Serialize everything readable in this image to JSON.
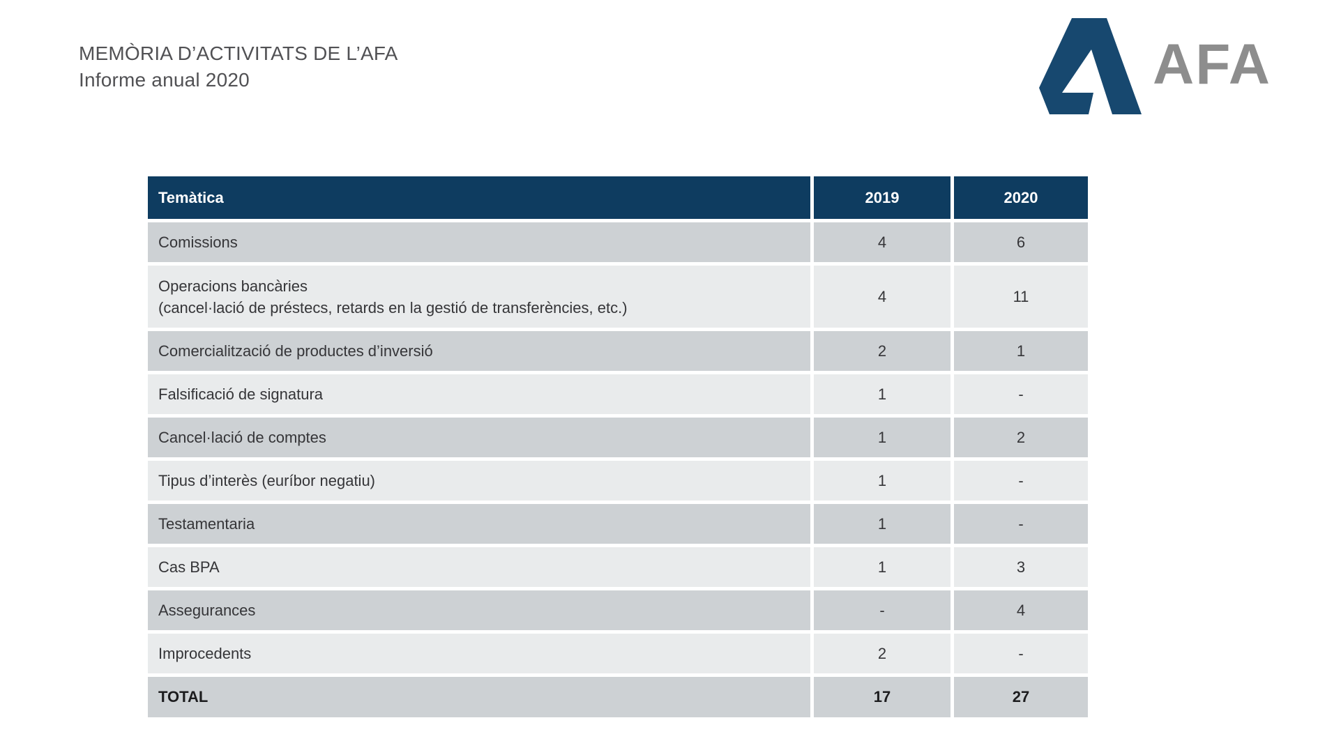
{
  "page": {
    "title_line1": "MEMÒRIA D’ACTIVITATS DE L’AFA",
    "title_line2": "Informe anual 2020"
  },
  "logo": {
    "text": "AFA",
    "mark_color": "#17486f",
    "text_color": "#8d8d8d"
  },
  "table": {
    "headers": [
      "Temàtica",
      "2019",
      "2020"
    ],
    "colors": {
      "header_bg": "#0e3c60",
      "row_dark": "#cdd1d4",
      "row_light": "#e9ebec"
    },
    "rows": [
      {
        "tematica": "Comissions",
        "sub": "",
        "y2019": "4",
        "y2020": "6"
      },
      {
        "tematica": "Operacions bancàries",
        "sub": "(cancel·lació de préstecs, retards en la gestió de transferències, etc.)",
        "y2019": "4",
        "y2020": "11"
      },
      {
        "tematica": "Comercialització de productes d’inversió",
        "sub": "",
        "y2019": "2",
        "y2020": "1"
      },
      {
        "tematica": "Falsificació de signatura",
        "sub": "",
        "y2019": "1",
        "y2020": "-"
      },
      {
        "tematica": "Cancel·lació de comptes",
        "sub": "",
        "y2019": "1",
        "y2020": "2"
      },
      {
        "tematica": "Tipus d’interès (euríbor negatiu)",
        "sub": "",
        "y2019": "1",
        "y2020": "-"
      },
      {
        "tematica": "Testamentaria",
        "sub": "",
        "y2019": "1",
        "y2020": "-"
      },
      {
        "tematica": "Cas BPA",
        "sub": "",
        "y2019": "1",
        "y2020": "3"
      },
      {
        "tematica": "Assegurances",
        "sub": "",
        "y2019": "-",
        "y2020": "4"
      },
      {
        "tematica": "Improcedents",
        "sub": "",
        "y2019": "2",
        "y2020": "-"
      }
    ],
    "total": {
      "label": "TOTAL",
      "y2019": "17",
      "y2020": "27"
    }
  },
  "chart_data": {
    "type": "table",
    "title": "Memòria d’activitats de l’AFA — Informe anual 2020",
    "columns": [
      "Temàtica",
      "2019",
      "2020"
    ],
    "rows": [
      [
        "Comissions",
        4,
        6
      ],
      [
        "Operacions bancàries (cancel·lació de préstecs, retards en la gestió de transferències, etc.)",
        4,
        11
      ],
      [
        "Comercialització de productes d’inversió",
        2,
        1
      ],
      [
        "Falsificació de signatura",
        1,
        "-"
      ],
      [
        "Cancel·lació de comptes",
        1,
        2
      ],
      [
        "Tipus d’interès (euríbor negatiu)",
        1,
        "-"
      ],
      [
        "Testamentaria",
        1,
        "-"
      ],
      [
        "Cas BPA",
        1,
        3
      ],
      [
        "Assegurances",
        "-",
        4
      ],
      [
        "Improcedents",
        2,
        "-"
      ],
      [
        "TOTAL",
        17,
        27
      ]
    ]
  }
}
